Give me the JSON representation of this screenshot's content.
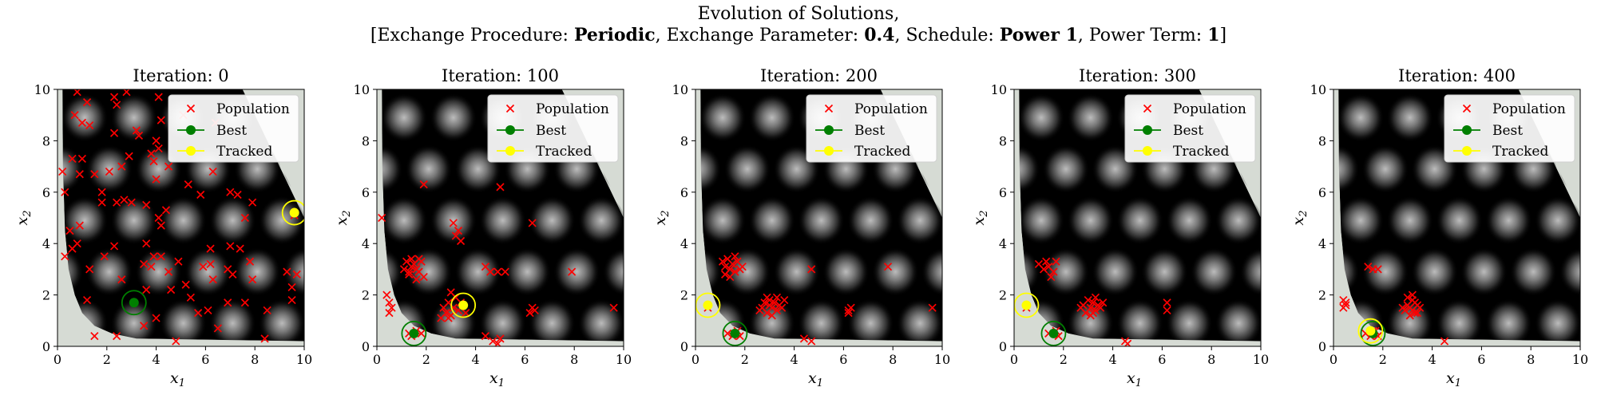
{
  "figure": {
    "suptitle_line1": "Evolution of Solutions,",
    "suptitle_line2": {
      "p1": "[Exchange Procedure: ",
      "exchange_procedure": "Periodic",
      "p2": ", Exchange Parameter: ",
      "exchange_parameter": "0.4",
      "p3": ", Schedule: ",
      "schedule": "Power 1",
      "p4": ", Power Term: ",
      "power_term": "1",
      "p5": "]"
    }
  },
  "colors": {
    "population": "#ff0000",
    "best": "#007f00",
    "tracked": "#ffff00",
    "background_field": "#000000",
    "infeasible_region": "#d6dbd4"
  },
  "chart_data": [
    {
      "type": "scatter",
      "title": "Iteration: 0",
      "xlabel": "x_1",
      "ylabel": "x_2",
      "xlim": [
        0,
        10
      ],
      "ylim": [
        0,
        10
      ],
      "xticks": [
        0,
        2,
        4,
        6,
        8,
        10
      ],
      "yticks": [
        0,
        2,
        4,
        6,
        8,
        10
      ],
      "legend": {
        "position": "top-right",
        "entries": [
          "Population",
          "Best",
          "Tracked"
        ]
      },
      "best": [
        3.1,
        1.7
      ],
      "tracked": [
        9.6,
        5.2
      ],
      "population": [
        [
          0.8,
          9.9
        ],
        [
          1.2,
          9.5
        ],
        [
          2.3,
          9.7
        ],
        [
          2.4,
          9.4
        ],
        [
          2.8,
          9.9
        ],
        [
          4.1,
          9.7
        ],
        [
          0.7,
          9.0
        ],
        [
          1.0,
          8.7
        ],
        [
          1.3,
          8.6
        ],
        [
          2.3,
          8.3
        ],
        [
          3.2,
          8.4
        ],
        [
          3.3,
          8.2
        ],
        [
          4.0,
          8.0
        ],
        [
          4.2,
          8.8
        ],
        [
          0.2,
          6.8
        ],
        [
          0.6,
          7.3
        ],
        [
          0.9,
          6.7
        ],
        [
          1.0,
          7.3
        ],
        [
          2.6,
          7.0
        ],
        [
          2.9,
          7.4
        ],
        [
          3.8,
          7.5
        ],
        [
          3.9,
          7.2
        ],
        [
          4.5,
          7.0
        ],
        [
          5.1,
          9.0
        ],
        [
          6.4,
          8.7
        ],
        [
          0.3,
          6.0
        ],
        [
          1.5,
          6.7
        ],
        [
          1.8,
          6.0
        ],
        [
          2.1,
          6.8
        ],
        [
          2.7,
          5.7
        ],
        [
          3.0,
          5.6
        ],
        [
          2.4,
          5.6
        ],
        [
          1.8,
          5.6
        ],
        [
          4.0,
          6.5
        ],
        [
          4.1,
          7.7
        ],
        [
          5.3,
          6.3
        ],
        [
          3.6,
          5.5
        ],
        [
          4.1,
          5.0
        ],
        [
          4.4,
          5.3
        ],
        [
          4.2,
          4.7
        ],
        [
          5.8,
          5.9
        ],
        [
          6.3,
          6.8
        ],
        [
          7.0,
          6.0
        ],
        [
          7.3,
          5.9
        ],
        [
          7.9,
          5.6
        ],
        [
          7.6,
          5.0
        ],
        [
          0.5,
          4.5
        ],
        [
          0.6,
          3.8
        ],
        [
          0.8,
          4.0
        ],
        [
          0.9,
          4.7
        ],
        [
          1.3,
          3.0
        ],
        [
          1.9,
          3.5
        ],
        [
          2.3,
          3.9
        ],
        [
          0.3,
          3.5
        ],
        [
          3.6,
          4.0
        ],
        [
          3.9,
          3.5
        ],
        [
          4.2,
          3.5
        ],
        [
          3.5,
          3.2
        ],
        [
          3.8,
          3.1
        ],
        [
          6.2,
          3.8
        ],
        [
          6.3,
          2.6
        ],
        [
          6.9,
          3.0
        ],
        [
          7.0,
          3.9
        ],
        [
          7.4,
          3.8
        ],
        [
          7.8,
          3.3
        ],
        [
          7.9,
          2.6
        ],
        [
          5.9,
          3.1
        ],
        [
          6.2,
          3.2
        ],
        [
          7.1,
          2.8
        ],
        [
          4.9,
          3.3
        ],
        [
          4.5,
          2.9
        ],
        [
          4.6,
          2.2
        ],
        [
          5.2,
          2.4
        ],
        [
          5.7,
          1.3
        ],
        [
          5.4,
          1.9
        ],
        [
          6.1,
          1.4
        ],
        [
          6.5,
          0.7
        ],
        [
          6.9,
          1.7
        ],
        [
          7.6,
          1.7
        ],
        [
          8.5,
          1.4
        ],
        [
          9.3,
          2.9
        ],
        [
          9.5,
          1.8
        ],
        [
          9.7,
          2.8
        ],
        [
          9.5,
          2.3
        ],
        [
          4.8,
          0.2
        ],
        [
          4.0,
          1.1
        ],
        [
          3.6,
          2.2
        ],
        [
          2.6,
          2.6
        ],
        [
          1.2,
          1.8
        ],
        [
          1.5,
          0.4
        ],
        [
          2.4,
          0.4
        ],
        [
          3.5,
          0.8
        ],
        [
          8.4,
          0.3
        ],
        [
          9.6,
          5.1
        ]
      ]
    },
    {
      "type": "scatter",
      "title": "Iteration: 100",
      "xlabel": "x_1",
      "ylabel": "x_2",
      "xlim": [
        0,
        10
      ],
      "ylim": [
        0,
        10
      ],
      "xticks": [
        0,
        2,
        4,
        6,
        8,
        10
      ],
      "yticks": [
        0,
        2,
        4,
        6,
        8,
        10
      ],
      "legend": {
        "position": "top-right",
        "entries": [
          "Population",
          "Best",
          "Tracked"
        ]
      },
      "best": [
        1.5,
        0.5
      ],
      "tracked": [
        3.5,
        1.6
      ],
      "population": [
        [
          0.2,
          5.0
        ],
        [
          0.4,
          2.0
        ],
        [
          0.5,
          1.7
        ],
        [
          0.6,
          1.5
        ],
        [
          0.5,
          1.3
        ],
        [
          1.1,
          3.0
        ],
        [
          1.2,
          3.3
        ],
        [
          1.3,
          2.8
        ],
        [
          1.4,
          3.1
        ],
        [
          1.5,
          3.2
        ],
        [
          1.6,
          3.0
        ],
        [
          1.7,
          2.9
        ],
        [
          1.8,
          3.3
        ],
        [
          1.9,
          2.7
        ],
        [
          1.3,
          2.9
        ],
        [
          1.4,
          3.4
        ],
        [
          1.7,
          3.4
        ],
        [
          1.6,
          2.6
        ],
        [
          1.9,
          6.3
        ],
        [
          3.1,
          4.8
        ],
        [
          3.3,
          4.5
        ],
        [
          3.4,
          4.1
        ],
        [
          3.2,
          4.3
        ],
        [
          2.7,
          1.5
        ],
        [
          2.8,
          1.3
        ],
        [
          2.9,
          1.7
        ],
        [
          3.0,
          1.2
        ],
        [
          3.1,
          1.5
        ],
        [
          3.2,
          1.9
        ],
        [
          3.3,
          1.4
        ],
        [
          3.4,
          1.7
        ],
        [
          2.9,
          1.1
        ],
        [
          3.0,
          2.1
        ],
        [
          3.6,
          1.3
        ],
        [
          2.6,
          1.1
        ],
        [
          4.4,
          3.1
        ],
        [
          4.6,
          2.9
        ],
        [
          4.9,
          2.9
        ],
        [
          5.2,
          2.9
        ],
        [
          5.0,
          6.2
        ],
        [
          6.3,
          4.8
        ],
        [
          6.2,
          1.3
        ],
        [
          6.4,
          1.4
        ],
        [
          6.3,
          1.5
        ],
        [
          4.4,
          0.4
        ],
        [
          4.7,
          0.2
        ],
        [
          5.0,
          0.3
        ],
        [
          4.9,
          0.1
        ],
        [
          1.3,
          0.5
        ],
        [
          1.6,
          0.6
        ],
        [
          1.4,
          0.4
        ],
        [
          1.8,
          0.5
        ],
        [
          9.6,
          1.5
        ],
        [
          7.9,
          2.9
        ]
      ]
    },
    {
      "type": "scatter",
      "title": "Iteration: 200",
      "xlabel": "x_1",
      "ylabel": "x_2",
      "xlim": [
        0,
        10
      ],
      "ylim": [
        0,
        10
      ],
      "xticks": [
        0,
        2,
        4,
        6,
        8,
        10
      ],
      "yticks": [
        0,
        2,
        4,
        6,
        8,
        10
      ],
      "legend": {
        "position": "top-right",
        "entries": [
          "Population",
          "Best",
          "Tracked"
        ]
      },
      "best": [
        1.6,
        0.5
      ],
      "tracked": [
        0.5,
        1.6
      ],
      "population": [
        [
          1.1,
          3.3
        ],
        [
          1.2,
          3.1
        ],
        [
          1.3,
          3.4
        ],
        [
          1.4,
          3.0
        ],
        [
          1.5,
          3.2
        ],
        [
          1.6,
          2.9
        ],
        [
          1.7,
          3.3
        ],
        [
          1.8,
          3.0
        ],
        [
          1.2,
          2.8
        ],
        [
          1.4,
          2.7
        ],
        [
          1.6,
          3.5
        ],
        [
          1.9,
          3.1
        ],
        [
          2.7,
          1.5
        ],
        [
          2.8,
          1.7
        ],
        [
          2.9,
          1.3
        ],
        [
          3.0,
          1.8
        ],
        [
          3.1,
          1.5
        ],
        [
          3.2,
          1.7
        ],
        [
          3.3,
          1.4
        ],
        [
          3.4,
          1.6
        ],
        [
          3.5,
          1.5
        ],
        [
          2.9,
          1.9
        ],
        [
          3.1,
          1.2
        ],
        [
          3.3,
          1.9
        ],
        [
          3.6,
          1.8
        ],
        [
          2.6,
          1.4
        ],
        [
          3.0,
          1.6
        ],
        [
          4.7,
          3.0
        ],
        [
          4.4,
          0.3
        ],
        [
          4.7,
          0.2
        ],
        [
          6.2,
          1.4
        ],
        [
          6.3,
          1.5
        ],
        [
          6.2,
          1.3
        ],
        [
          1.3,
          0.5
        ],
        [
          1.5,
          0.4
        ],
        [
          1.7,
          0.6
        ],
        [
          1.8,
          0.4
        ],
        [
          0.5,
          1.5
        ],
        [
          7.8,
          3.1
        ],
        [
          9.6,
          1.5
        ]
      ]
    },
    {
      "type": "scatter",
      "title": "Iteration: 300",
      "xlabel": "x_1",
      "ylabel": "x_2",
      "xlim": [
        0,
        10
      ],
      "ylim": [
        0,
        10
      ],
      "xticks": [
        0,
        2,
        4,
        6,
        8,
        10
      ],
      "yticks": [
        0,
        2,
        4,
        6,
        8,
        10
      ],
      "legend": {
        "position": "top-right",
        "entries": [
          "Population",
          "Best",
          "Tracked"
        ]
      },
      "best": [
        1.6,
        0.5
      ],
      "tracked": [
        0.5,
        1.6
      ],
      "population": [
        [
          1.0,
          3.2
        ],
        [
          1.2,
          3.0
        ],
        [
          1.4,
          3.1
        ],
        [
          1.6,
          2.9
        ],
        [
          1.7,
          3.3
        ],
        [
          1.3,
          3.3
        ],
        [
          1.5,
          2.7
        ],
        [
          3.1,
          1.5
        ],
        [
          3.2,
          1.7
        ],
        [
          3.3,
          1.4
        ],
        [
          3.4,
          1.6
        ],
        [
          3.0,
          1.8
        ],
        [
          2.9,
          1.3
        ],
        [
          2.8,
          1.6
        ],
        [
          3.5,
          1.5
        ],
        [
          3.6,
          1.7
        ],
        [
          3.3,
          1.9
        ],
        [
          3.1,
          1.2
        ],
        [
          2.7,
          1.5
        ],
        [
          3.2,
          1.3
        ],
        [
          4.5,
          0.2
        ],
        [
          4.6,
          0.1
        ],
        [
          6.2,
          1.4
        ],
        [
          6.2,
          1.7
        ],
        [
          1.4,
          0.5
        ],
        [
          1.7,
          0.6
        ],
        [
          1.8,
          0.4
        ],
        [
          0.5,
          1.5
        ]
      ]
    },
    {
      "type": "scatter",
      "title": "Iteration: 400",
      "xlabel": "x_1",
      "ylabel": "x_2",
      "xlim": [
        0,
        10
      ],
      "ylim": [
        0,
        10
      ],
      "xticks": [
        0,
        2,
        4,
        6,
        8,
        10
      ],
      "yticks": [
        0,
        2,
        4,
        6,
        8,
        10
      ],
      "legend": {
        "position": "top-right",
        "entries": [
          "Population",
          "Best",
          "Tracked"
        ]
      },
      "best": [
        1.6,
        0.5
      ],
      "tracked": [
        1.5,
        0.6
      ],
      "population": [
        [
          0.4,
          1.8
        ],
        [
          0.5,
          1.6
        ],
        [
          0.4,
          1.5
        ],
        [
          0.5,
          1.7
        ],
        [
          1.4,
          3.1
        ],
        [
          1.6,
          3.0
        ],
        [
          1.8,
          3.0
        ],
        [
          2.9,
          1.4
        ],
        [
          3.0,
          1.6
        ],
        [
          3.1,
          1.5
        ],
        [
          3.2,
          1.8
        ],
        [
          3.3,
          1.3
        ],
        [
          3.4,
          1.6
        ],
        [
          3.1,
          1.2
        ],
        [
          3.2,
          1.4
        ],
        [
          3.0,
          1.9
        ],
        [
          3.3,
          1.7
        ],
        [
          3.5,
          1.5
        ],
        [
          3.2,
          2.0
        ],
        [
          2.8,
          1.5
        ],
        [
          3.4,
          1.3
        ],
        [
          4.5,
          0.2
        ],
        [
          1.3,
          0.5
        ],
        [
          1.5,
          0.4
        ],
        [
          1.7,
          0.6
        ],
        [
          1.8,
          0.4
        ],
        [
          1.6,
          0.6
        ]
      ]
    }
  ]
}
